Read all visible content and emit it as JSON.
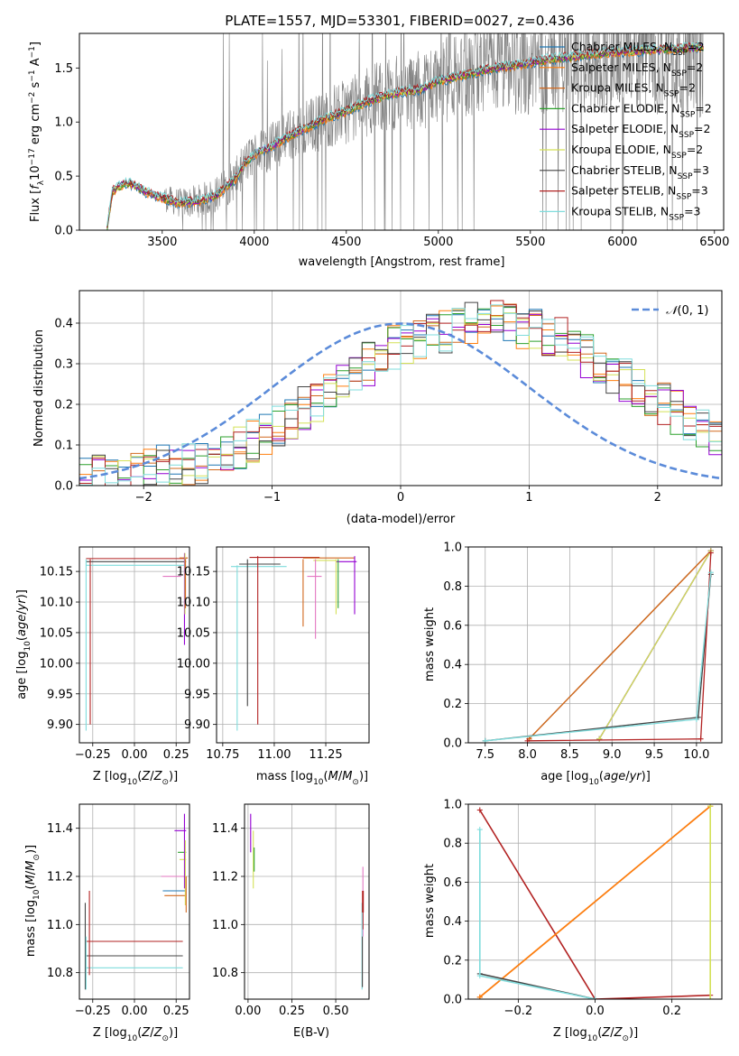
{
  "figure": {
    "title": "PLATE=1557, MJD=53301, FIBERID=0027, z=0.436"
  },
  "colors": {
    "Chabrier MILES": "#1f77b4",
    "Salpeter MILES": "#ff7f0e",
    "Kroupa MILES": "#d2691e",
    "Chabrier ELODIE": "#2ca02c",
    "Salpeter ELODIE": "#9400d3",
    "Kroupa ELODIE": "#d4e157",
    "Chabrier STELIB": "#444444",
    "Salpeter STELIB": "#b22222",
    "Kroupa STELIB": "#7fdcdc",
    "data": "#808080",
    "gaussian": "#5b8bd9",
    "pink": "#e377c2"
  },
  "chart_data": [
    {
      "id": "spectrum",
      "type": "line",
      "title": "PLATE=1557, MJD=53301, FIBERID=0027, z=0.436",
      "xlabel": "wavelength [Angstrom, rest frame]",
      "ylabel": "Flux [fλ 10⁻¹⁷ erg cm⁻² s⁻¹ A⁻¹]",
      "xlim": [
        3050,
        6550
      ],
      "ylim": [
        0,
        1.82
      ],
      "xticks": [
        3500,
        4000,
        4500,
        5000,
        5500,
        6000,
        6500
      ],
      "yticks": [
        0.0,
        0.5,
        1.0,
        1.5
      ],
      "legend_position": "top-right",
      "legend": [
        "Chabrier MILES, N_SSP=2",
        "Salpeter MILES, N_SSP=2",
        "Kroupa MILES, N_SSP=2",
        "Chabrier ELODIE, N_SSP=2",
        "Salpeter ELODIE, N_SSP=2",
        "Kroupa ELODIE, N_SSP=2",
        "Chabrier STELIB, N_SSP=3",
        "Salpeter STELIB, N_SSP=3",
        "Kroupa STELIB, N_SSP=3"
      ],
      "model_continuum": {
        "x": [
          3200,
          3230,
          3300,
          3350,
          3400,
          3450,
          3500,
          3600,
          3700,
          3800,
          3900,
          3950,
          4000,
          4100,
          4200,
          4300,
          4400,
          4500,
          4600,
          4700,
          4800,
          4900,
          5000,
          5100,
          5200,
          5300,
          5400,
          5500,
          5600,
          5700,
          5800,
          5900,
          6000,
          6100,
          6200,
          6300,
          6400
        ],
        "y": [
          0.02,
          0.36,
          0.44,
          0.42,
          0.36,
          0.33,
          0.3,
          0.25,
          0.27,
          0.33,
          0.48,
          0.62,
          0.7,
          0.78,
          0.88,
          0.96,
          1.04,
          1.1,
          1.18,
          1.24,
          1.28,
          1.3,
          1.38,
          1.42,
          1.46,
          1.5,
          1.52,
          1.55,
          1.58,
          1.6,
          1.62,
          1.64,
          1.65,
          1.66,
          1.67,
          1.68,
          1.69
        ]
      },
      "data_noise_envelope_start": 3500
    },
    {
      "id": "residuals",
      "type": "line",
      "xlabel": "(data-model)/error",
      "ylabel": "Normed distribution",
      "xlim": [
        -2.5,
        2.5
      ],
      "ylim": [
        0,
        0.48
      ],
      "xticks": [
        -2,
        -1,
        0,
        1,
        2
      ],
      "yticks": [
        0.0,
        0.1,
        0.2,
        0.3,
        0.4
      ],
      "grid": true,
      "legend_position": "top-right",
      "legend": [
        "N(0,1)"
      ],
      "histogram": {
        "bin_start": -2.5,
        "bin_width": 0.1,
        "mean_profile": [
          0.02,
          0.022,
          0.025,
          0.03,
          0.035,
          0.04,
          0.045,
          0.05,
          0.055,
          0.06,
          0.07,
          0.08,
          0.095,
          0.11,
          0.13,
          0.15,
          0.17,
          0.19,
          0.21,
          0.23,
          0.26,
          0.28,
          0.3,
          0.32,
          0.34,
          0.35,
          0.36,
          0.37,
          0.38,
          0.39,
          0.4,
          0.41,
          0.41,
          0.4,
          0.39,
          0.38,
          0.37,
          0.36,
          0.34,
          0.32,
          0.3,
          0.28,
          0.26,
          0.24,
          0.22,
          0.2,
          0.18,
          0.16,
          0.14,
          0.12
        ]
      }
    },
    {
      "id": "age-vs-Z",
      "type": "scatter",
      "xlabel": "Z [log10(Z/Z⊙)]",
      "ylabel": "age  [log10(age/yr)]",
      "xlim": [
        -0.33,
        0.33
      ],
      "ylim": [
        9.87,
        10.19
      ],
      "xticks": [
        -0.25,
        0.0,
        0.25
      ],
      "yticks": [
        9.9,
        9.95,
        10.0,
        10.05,
        10.1,
        10.15
      ],
      "grid": true
    },
    {
      "id": "age-vs-mass",
      "type": "scatter",
      "xlabel": "mass [log10(M/M⊙)]",
      "xlim": [
        10.72,
        11.46
      ],
      "ylim": [
        9.87,
        10.19
      ],
      "xticks": [
        10.75,
        11.0,
        11.25
      ],
      "xticklabels": [
        "10.75",
        "11.00",
        "11.25"
      ],
      "yticks": [
        9.9,
        9.95,
        10.0,
        10.05,
        10.1,
        10.15
      ],
      "grid": true
    },
    {
      "id": "weight-vs-age",
      "type": "line",
      "xlabel": "age  [log10(age/yr)]",
      "ylabel": "mass weight",
      "xlim": [
        7.3,
        10.3
      ],
      "ylim": [
        0,
        1.0
      ],
      "xticks": [
        7.5,
        8.0,
        8.5,
        9.0,
        9.5,
        10.0
      ],
      "yticks": [
        0.0,
        0.2,
        0.4,
        0.6,
        0.8,
        1.0
      ],
      "grid": true,
      "series": [
        {
          "name": "Chabrier MILES",
          "x": [
            8.02,
            10.17
          ],
          "y": [
            0.02,
            0.98
          ]
        },
        {
          "name": "Salpeter MILES",
          "x": [
            8.02,
            10.17
          ],
          "y": [
            0.02,
            0.98
          ]
        },
        {
          "name": "Kroupa MILES",
          "x": [
            8.02,
            10.17
          ],
          "y": [
            0.02,
            0.98
          ]
        },
        {
          "name": "Chabrier ELODIE",
          "x": [
            8.85,
            10.17
          ],
          "y": [
            0.02,
            0.98
          ]
        },
        {
          "name": "Salpeter ELODIE",
          "x": [
            8.85,
            10.17
          ],
          "y": [
            0.02,
            0.98
          ]
        },
        {
          "name": "Kroupa ELODIE",
          "x": [
            8.85,
            10.17
          ],
          "y": [
            0.02,
            0.98
          ]
        },
        {
          "name": "Chabrier STELIB",
          "x": [
            7.5,
            10.02,
            10.17
          ],
          "y": [
            0.01,
            0.13,
            0.86
          ]
        },
        {
          "name": "Salpeter STELIB",
          "x": [
            8.0,
            10.05,
            10.17
          ],
          "y": [
            0.01,
            0.02,
            0.97
          ]
        },
        {
          "name": "Kroupa STELIB",
          "x": [
            7.5,
            10.0,
            10.17
          ],
          "y": [
            0.01,
            0.12,
            0.87
          ]
        }
      ]
    },
    {
      "id": "mass-vs-Z",
      "type": "scatter",
      "xlabel": "Z [log10(Z/Z⊙)]",
      "ylabel": "mass [log10(M/M⊙)]",
      "xlim": [
        -0.33,
        0.33
      ],
      "ylim": [
        10.69,
        11.5
      ],
      "xticks": [
        -0.25,
        0.0,
        0.25
      ],
      "yticks": [
        10.8,
        11.0,
        11.2,
        11.4
      ],
      "grid": true
    },
    {
      "id": "mass-vs-EBV",
      "type": "scatter",
      "xlabel": "E(B-V)",
      "xlim": [
        -0.02,
        0.69
      ],
      "ylim": [
        10.69,
        11.5
      ],
      "xticks": [
        0.0,
        0.25,
        0.5
      ],
      "yticks": [
        10.8,
        11.0,
        11.2,
        11.4
      ],
      "grid": true
    },
    {
      "id": "weight-vs-Z",
      "type": "line",
      "xlabel": "Z [log10(Z/Z⊙)]",
      "ylabel": "mass weight",
      "xlim": [
        -0.33,
        0.33
      ],
      "ylim": [
        0,
        1.0
      ],
      "xticks": [
        -0.2,
        0.0,
        0.2
      ],
      "yticks": [
        0.0,
        0.2,
        0.4,
        0.6,
        0.8,
        1.0
      ],
      "grid": true,
      "series": [
        {
          "name": "Salpeter STELIB",
          "x": [
            -0.3,
            0.0,
            0.3
          ],
          "y": [
            0.97,
            0.0,
            0.02
          ]
        },
        {
          "name": "Kroupa MILES",
          "x": [
            -0.3,
            0.3
          ],
          "y": [
            0.01,
            0.99
          ]
        },
        {
          "name": "Salpeter MILES",
          "x": [
            -0.3,
            0.3
          ],
          "y": [
            0.01,
            0.99
          ]
        },
        {
          "name": "Chabrier STELIB",
          "x": [
            -0.3,
            0.0
          ],
          "y": [
            0.13,
            0.0
          ]
        },
        {
          "name": "Kroupa STELIB",
          "x": [
            -0.3,
            -0.3,
            0.0
          ],
          "y": [
            0.87,
            0.12,
            0.0
          ]
        },
        {
          "name": "Kroupa ELODIE",
          "x": [
            0.3,
            0.3
          ],
          "y": [
            0.0,
            0.99
          ]
        }
      ]
    }
  ]
}
